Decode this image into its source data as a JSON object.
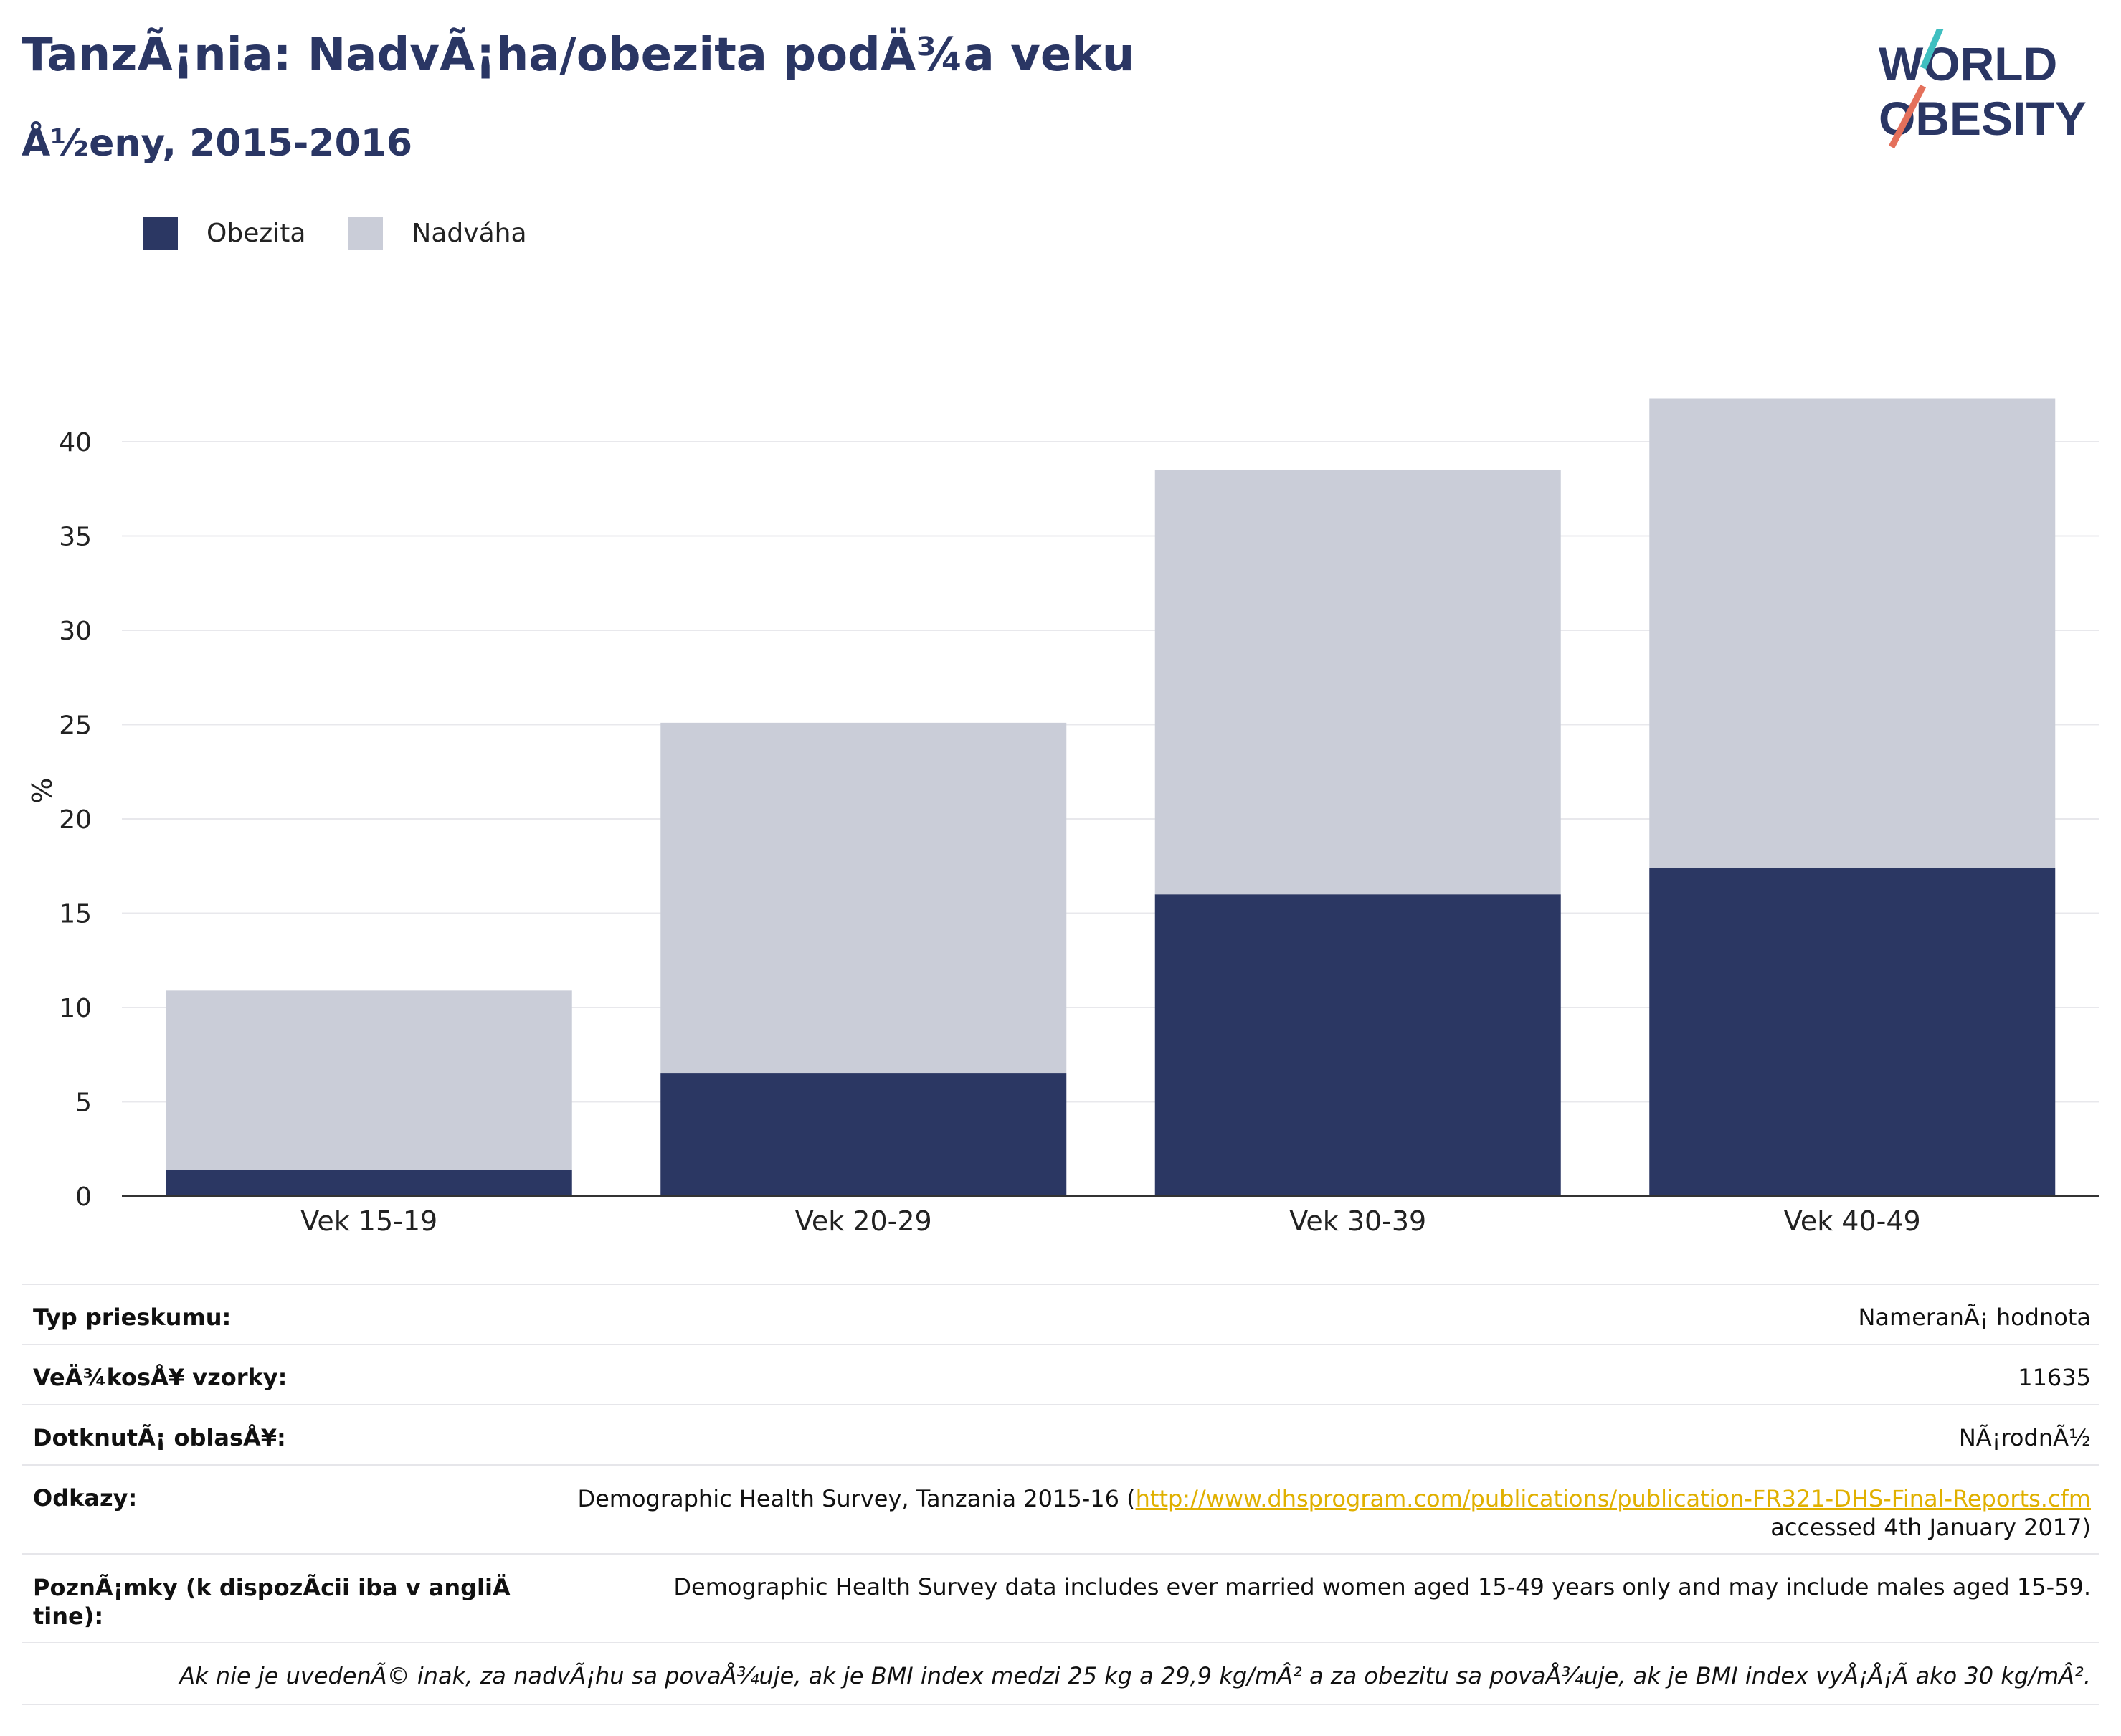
{
  "header": {
    "title": "TanzÃ¡nia: NadvÃ¡ha/obezita podÄ¾a veku",
    "subtitle": "Å½eny, 2015-2016"
  },
  "logo": {
    "line1": "WORLD",
    "line2": "OBESITY"
  },
  "colors": {
    "obesity": "#2b3763",
    "overweight": "#cacdd8",
    "text": "#2a3664",
    "link": "#e0b000"
  },
  "chart_data": {
    "type": "bar",
    "stacked": true,
    "categories": [
      "Vek 15-19",
      "Vek 20-29",
      "Vek 30-39",
      "Vek 40-49"
    ],
    "series": [
      {
        "name": "Obezita",
        "values": [
          1.4,
          6.5,
          16.0,
          17.4
        ]
      },
      {
        "name": "Nadváha",
        "values": [
          9.5,
          18.6,
          22.5,
          24.9
        ]
      }
    ],
    "ylabel": "%",
    "ylim": [
      0,
      43
    ],
    "yticks": [
      0,
      5,
      10,
      15,
      20,
      25,
      30,
      35,
      40
    ],
    "grid": true,
    "legend": "top-left"
  },
  "info": {
    "survey_type_label": "Typ prieskumu:",
    "survey_type_value": "NameranÃ¡ hodnota",
    "sample_size_label": "VeÄ¾kosÅ¥ vzorky:",
    "sample_size_value": "11635",
    "area_label": "DotknutÃ¡ oblasÅ¥:",
    "area_value": "NÃ¡rodnÃ½",
    "refs_label": "Odkazy:",
    "refs_prefix": "Demographic Health Survey, Tanzania 2015-16 (",
    "refs_link": "http://www.dhsprogram.com/publications/publication-FR321-DHS-Final-Reports.cfm",
    "refs_suffix": "accessed 4th January 2017)",
    "notes_label_1": "PoznÃ¡mky (k dispozÃcii iba v angliÄ",
    "notes_label_2": "tine):",
    "notes_value": "Demographic Health Survey data includes ever married women aged 15-49 years only and may include males aged 15-59.",
    "footnote": "Ak nie je uvedenÃ© inak, za nadvÃ¡hu sa povaÅ¾uje, ak je BMI index medzi 25 kg a 29,9 kg/mÂ² a za obezitu sa povaÅ¾uje, ak je BMI index vyÅ¡Å¡Ã ako 30 kg/mÂ²."
  }
}
